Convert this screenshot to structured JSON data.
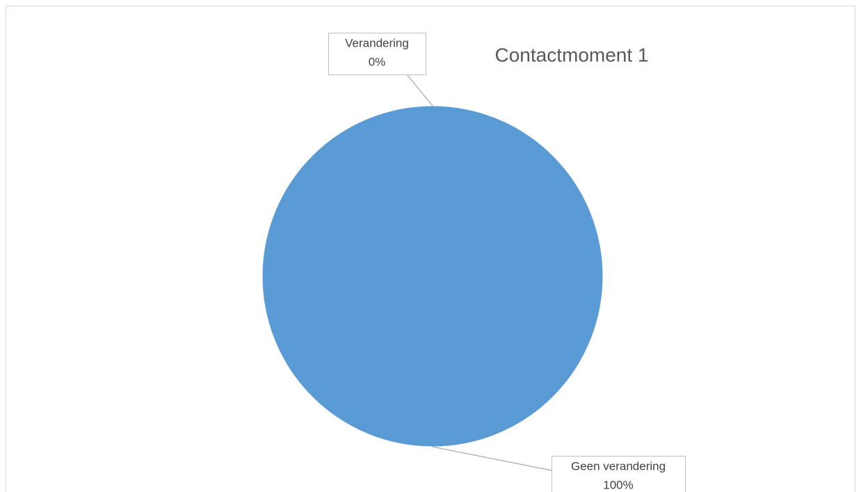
{
  "chart_data": {
    "type": "pie",
    "title": "Contactmoment 1",
    "categories": [
      "Verandering",
      "Geen verandering"
    ],
    "values": [
      0,
      100
    ],
    "value_labels": [
      "0%",
      "100%"
    ],
    "colors": [
      "#ed7d31",
      "#5b9bd5"
    ]
  }
}
